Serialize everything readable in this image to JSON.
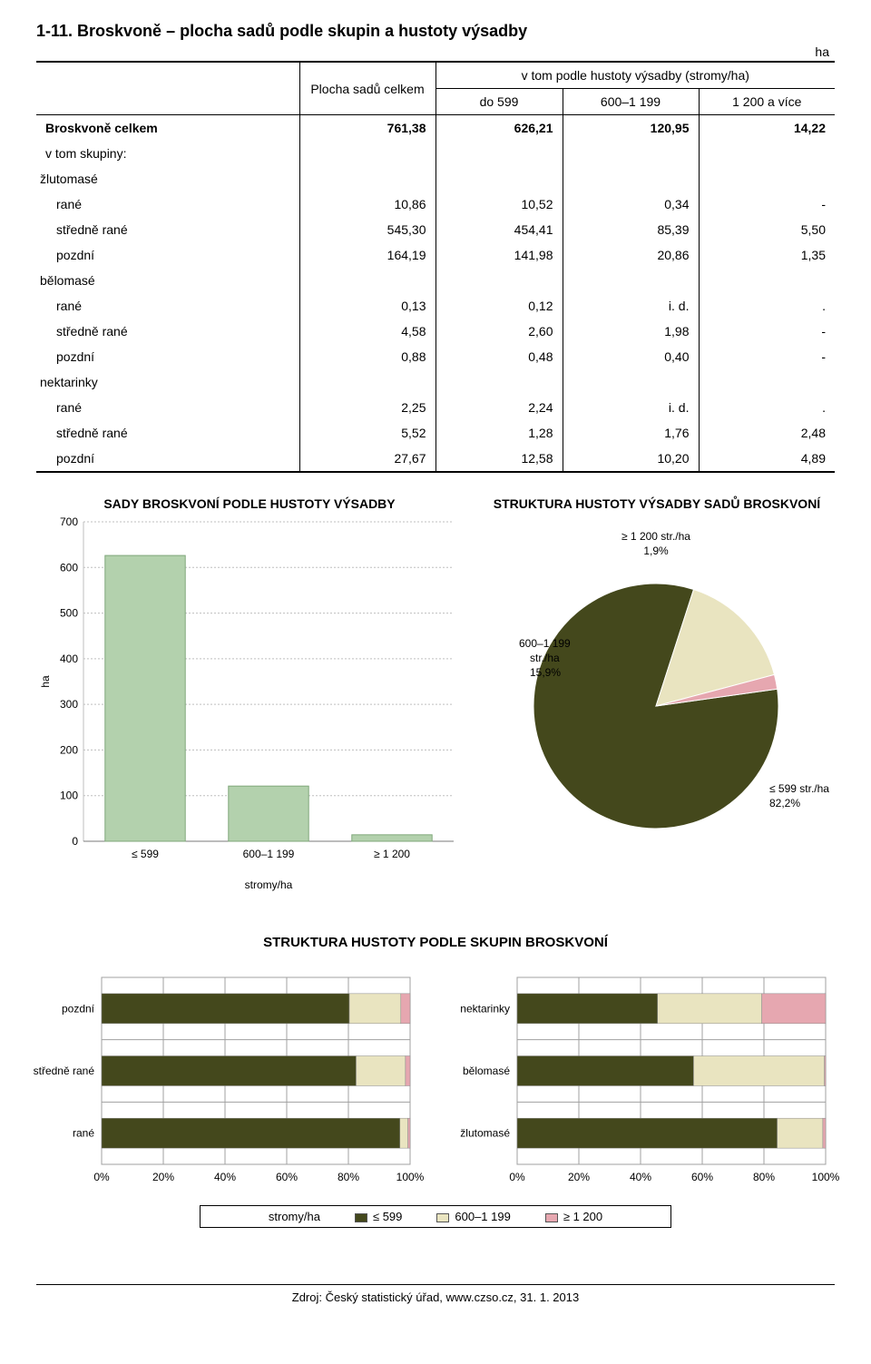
{
  "page": {
    "title": "1-11. Broskvoně – plocha sadů podle skupin a hustoty výsadby",
    "unit": "ha",
    "footer": "Zdroj: Český statistický úřad, www.czso.cz, 31. 1. 2013"
  },
  "table": {
    "head": {
      "col_area": "Plocha sadů celkem",
      "group_label": "v tom podle hustoty výsadby (stromy/ha)",
      "c1": "do 599",
      "c2": "600–1 199",
      "c3": "1 200 a více"
    },
    "rows": [
      {
        "label": "Broskvoně celkem",
        "cls": "bold",
        "a": "761,38",
        "b": "626,21",
        "c": "120,95",
        "d": "14,22"
      },
      {
        "label": "v tom skupiny:",
        "cls": "",
        "a": "",
        "b": "",
        "c": "",
        "d": ""
      },
      {
        "label": "žlutomasé",
        "cls": "indent1",
        "a": "",
        "b": "",
        "c": "",
        "d": ""
      },
      {
        "label": "rané",
        "cls": "indent2",
        "a": "10,86",
        "b": "10,52",
        "c": "0,34",
        "d": "-"
      },
      {
        "label": "středně rané",
        "cls": "indent2",
        "a": "545,30",
        "b": "454,41",
        "c": "85,39",
        "d": "5,50"
      },
      {
        "label": "pozdní",
        "cls": "indent2",
        "a": "164,19",
        "b": "141,98",
        "c": "20,86",
        "d": "1,35"
      },
      {
        "label": "bělomasé",
        "cls": "indent1",
        "a": "",
        "b": "",
        "c": "",
        "d": ""
      },
      {
        "label": "rané",
        "cls": "indent2",
        "a": "0,13",
        "b": "0,12",
        "c": "i. d.",
        "d": "."
      },
      {
        "label": "středně rané",
        "cls": "indent2",
        "a": "4,58",
        "b": "2,60",
        "c": "1,98",
        "d": "-"
      },
      {
        "label": "pozdní",
        "cls": "indent2",
        "a": "0,88",
        "b": "0,48",
        "c": "0,40",
        "d": "-"
      },
      {
        "label": "nektarinky",
        "cls": "indent1",
        "a": "",
        "b": "",
        "c": "",
        "d": ""
      },
      {
        "label": "rané",
        "cls": "indent2",
        "a": "2,25",
        "b": "2,24",
        "c": "i. d.",
        "d": "."
      },
      {
        "label": "středně rané",
        "cls": "indent2",
        "a": "5,52",
        "b": "1,28",
        "c": "1,76",
        "d": "2,48"
      },
      {
        "label": "pozdní",
        "cls": "indent2",
        "a": "27,67",
        "b": "12,58",
        "c": "10,20",
        "d": "4,89"
      }
    ]
  },
  "bar_chart": {
    "title": "SADY BROSKVONÍ PODLE HUSTOTY VÝSADBY",
    "xlabel": "stromy/ha",
    "ylabel": "ha",
    "categories": [
      "≤ 599",
      "600–1 199",
      "≥ 1 200"
    ],
    "values": [
      626.21,
      120.95,
      14.22
    ],
    "ylim": [
      0,
      700
    ],
    "ytick_step": 100,
    "bar_color": "#b3d1ad",
    "bar_border": "#7fa77a",
    "grid_color": "#bfbfbf",
    "plot_bg": "#ffffff",
    "axis_fontsize": 12,
    "title_fontsize": 14,
    "bar_width": 0.65
  },
  "pie_chart": {
    "title": "STRUKTURA HUSTOTY VÝSADBY SADŮ BROSKVONÍ",
    "slices": [
      {
        "label": "≤ 599 str./ha",
        "pct_label": "82,2%",
        "value": 82.2,
        "color": "#44481c"
      },
      {
        "label": "600–1 199 str./ha",
        "pct_label": "15,9%",
        "value": 15.9,
        "color": "#e9e4c0"
      },
      {
        "label": "≥ 1 200 str./ha",
        "pct_label": "1,9%",
        "value": 1.9,
        "color": "#e6a7b0"
      }
    ],
    "start_angle_deg": -8,
    "border_color": "#ffffff",
    "label_fontsize": 12
  },
  "section_title": "STRUKTURA HUSTOTY PODLE SKUPIN BROSKVONÍ",
  "stacked_left": {
    "categories": [
      "pozdní",
      "středně rané",
      "rané"
    ],
    "series_colors": [
      "#44481c",
      "#e9e4c0",
      "#e6a7b0"
    ],
    "data": [
      [
        80.3,
        16.7,
        3.0
      ],
      [
        82.5,
        16.0,
        1.5
      ],
      [
        96.7,
        2.6,
        0.7
      ]
    ],
    "xticks": [
      "0%",
      "20%",
      "40%",
      "60%",
      "80%",
      "100%"
    ],
    "grid_color": "#a0a0a0"
  },
  "stacked_right": {
    "categories": [
      "nektarinky",
      "bělomasé",
      "žlutomasé"
    ],
    "series_colors": [
      "#44481c",
      "#e9e4c0",
      "#e6a7b0"
    ],
    "data": [
      [
        45.5,
        33.8,
        20.7
      ],
      [
        57.2,
        42.4,
        0.4
      ],
      [
        84.3,
        14.8,
        0.9
      ]
    ],
    "xticks": [
      "0%",
      "20%",
      "40%",
      "60%",
      "80%",
      "100%"
    ],
    "grid_color": "#a0a0a0"
  },
  "legend": {
    "label0": "stromy/ha",
    "items": [
      {
        "label": "≤ 599",
        "color": "#44481c"
      },
      {
        "label": "600–1 199",
        "color": "#e9e4c0"
      },
      {
        "label": "≥ 1 200",
        "color": "#e6a7b0"
      }
    ]
  }
}
